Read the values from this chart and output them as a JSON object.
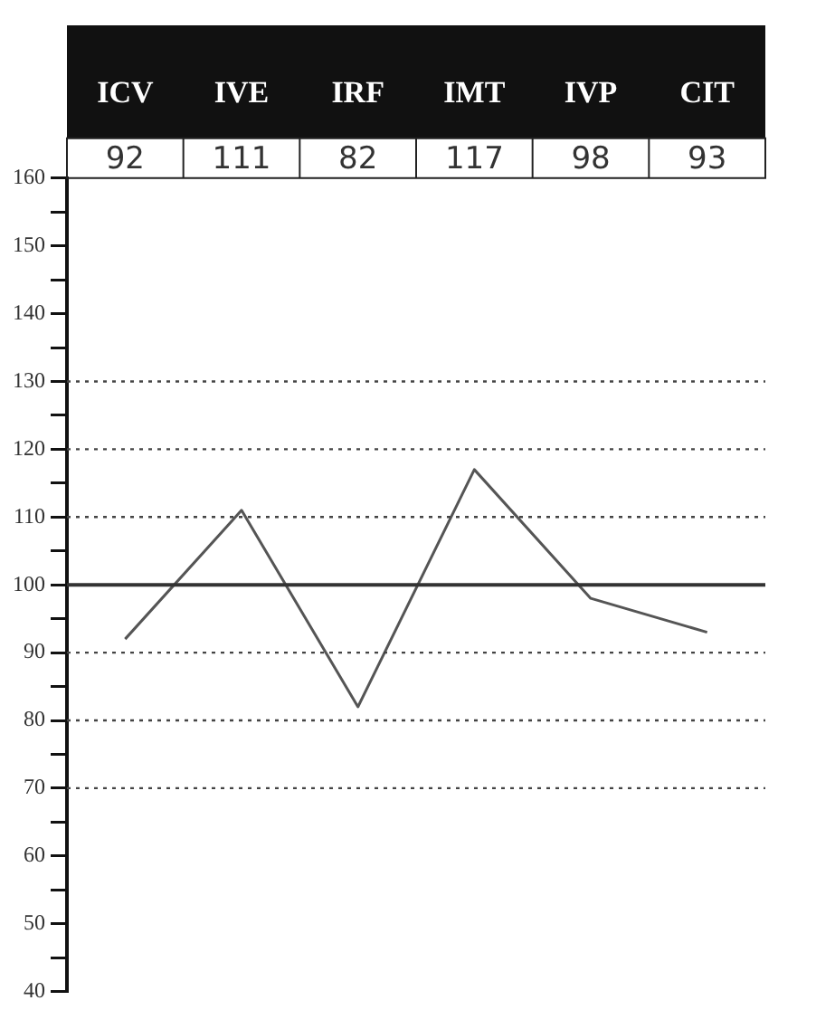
{
  "chart_data": {
    "type": "line",
    "categories": [
      "ICV",
      "IVE",
      "IRF",
      "IMT",
      "IVP",
      "CIT"
    ],
    "series": [
      {
        "color": "#555555",
        "values": [
          92,
          111,
          82,
          117,
          98,
          93
        ]
      }
    ],
    "annotations": [
      "92",
      "111",
      "82",
      "117",
      "98",
      "93"
    ],
    "marker": "none",
    "line_style": "solid",
    "grid": false,
    "legend": false,
    "ylim": [
      40,
      160
    ],
    "yticks": [
      40,
      {
        "value": 45,
        "label": null
      },
      50,
      {
        "value": 55,
        "label": null
      },
      60,
      {
        "value": 65,
        "label": null
      },
      70,
      {
        "value": 75,
        "label": null
      },
      80,
      {
        "value": 85,
        "label": null
      },
      90,
      {
        "value": 95,
        "label": null
      },
      100,
      {
        "value": 105,
        "label": null
      },
      110,
      {
        "value": 115,
        "label": null
      },
      120,
      {
        "value": 125,
        "label": null
      },
      130,
      {
        "value": 135,
        "label": null
      },
      140,
      {
        "value": 145,
        "label": null
      },
      150,
      {
        "value": 155,
        "label": null
      },
      160
    ],
    "ref_lines": [
      {
        "axis": "y",
        "value": 100,
        "color": "#333333",
        "line_style": "solid"
      },
      {
        "axis": "y",
        "value": 70,
        "color": "#444444",
        "line_style": "dotted"
      },
      {
        "axis": "y",
        "value": 80,
        "color": "#444444",
        "line_style": "dotted"
      },
      {
        "axis": "y",
        "value": 90,
        "color": "#444444",
        "line_style": "dotted"
      },
      {
        "axis": "y",
        "value": 110,
        "color": "#444444",
        "line_style": "dotted"
      },
      {
        "axis": "y",
        "value": 120,
        "color": "#444444",
        "line_style": "dotted"
      },
      {
        "axis": "y",
        "value": 130,
        "color": "#444444",
        "line_style": "dotted"
      }
    ]
  }
}
